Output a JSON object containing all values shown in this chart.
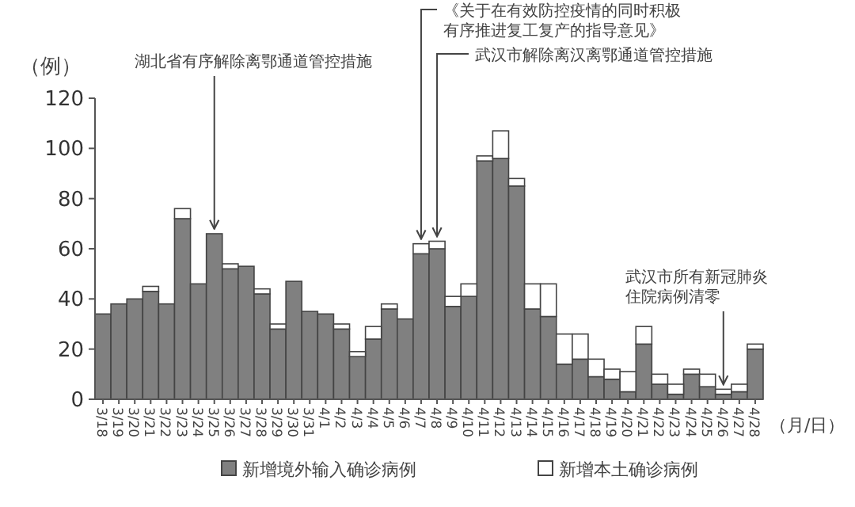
{
  "chart_data": {
    "type": "bar",
    "stacked": true,
    "ylabel": "（例）",
    "xlabel": "（月/日）",
    "categories": [
      "3/18",
      "3/19",
      "3/20",
      "3/21",
      "3/22",
      "3/23",
      "3/24",
      "3/25",
      "3/26",
      "3/27",
      "3/28",
      "3/29",
      "3/30",
      "3/31",
      "4/1",
      "4/2",
      "4/3",
      "4/4",
      "4/5",
      "4/6",
      "4/7",
      "4/8",
      "4/9",
      "4/10",
      "4/11",
      "4/12",
      "4/13",
      "4/14",
      "4/15",
      "4/16",
      "4/17",
      "4/18",
      "4/19",
      "4/20",
      "4/21",
      "4/22",
      "4/23",
      "4/24",
      "4/25",
      "4/26",
      "4/27",
      "4/28"
    ],
    "series": [
      {
        "name": "新增境外输入确诊病例",
        "color": "#808080",
        "values": [
          34,
          38,
          40,
          43,
          38,
          72,
          46,
          66,
          52,
          53,
          42,
          28,
          47,
          35,
          34,
          28,
          17,
          24,
          36,
          32,
          58,
          60,
          37,
          41,
          95,
          96,
          85,
          36,
          33,
          14,
          16,
          9,
          8,
          3,
          22,
          6,
          2,
          10,
          5,
          2,
          3,
          20
        ]
      },
      {
        "name": "新增本土确诊病例",
        "color": "#ffffff",
        "values": [
          0,
          0,
          0,
          2,
          0,
          4,
          0,
          0,
          2,
          0,
          2,
          2,
          0,
          0,
          0,
          2,
          2,
          5,
          2,
          0,
          4,
          3,
          4,
          5,
          2,
          11,
          3,
          10,
          13,
          12,
          10,
          7,
          4,
          8,
          7,
          4,
          4,
          2,
          5,
          2,
          3,
          2
        ]
      }
    ],
    "ylim": [
      0,
      120
    ],
    "yticks": [
      0,
      20,
      40,
      60,
      80,
      100,
      120
    ],
    "legend": "bottom",
    "grid": false,
    "annotations": [
      {
        "text": "湖北省有序解除离鄂通道管控措施",
        "x": "3/25",
        "y": 66
      },
      {
        "text": "《关于在有效防控疫情的同时积极有序推进复工复产的指导意见》",
        "x": "4/7",
        "y": 62
      },
      {
        "text": "武汉市解除离汉离鄂通道管控措施",
        "x": "4/8",
        "y": 63
      },
      {
        "text": "武汉市所有新冠肺炎住院病例清零",
        "x": "4/26",
        "y": 4
      }
    ]
  }
}
